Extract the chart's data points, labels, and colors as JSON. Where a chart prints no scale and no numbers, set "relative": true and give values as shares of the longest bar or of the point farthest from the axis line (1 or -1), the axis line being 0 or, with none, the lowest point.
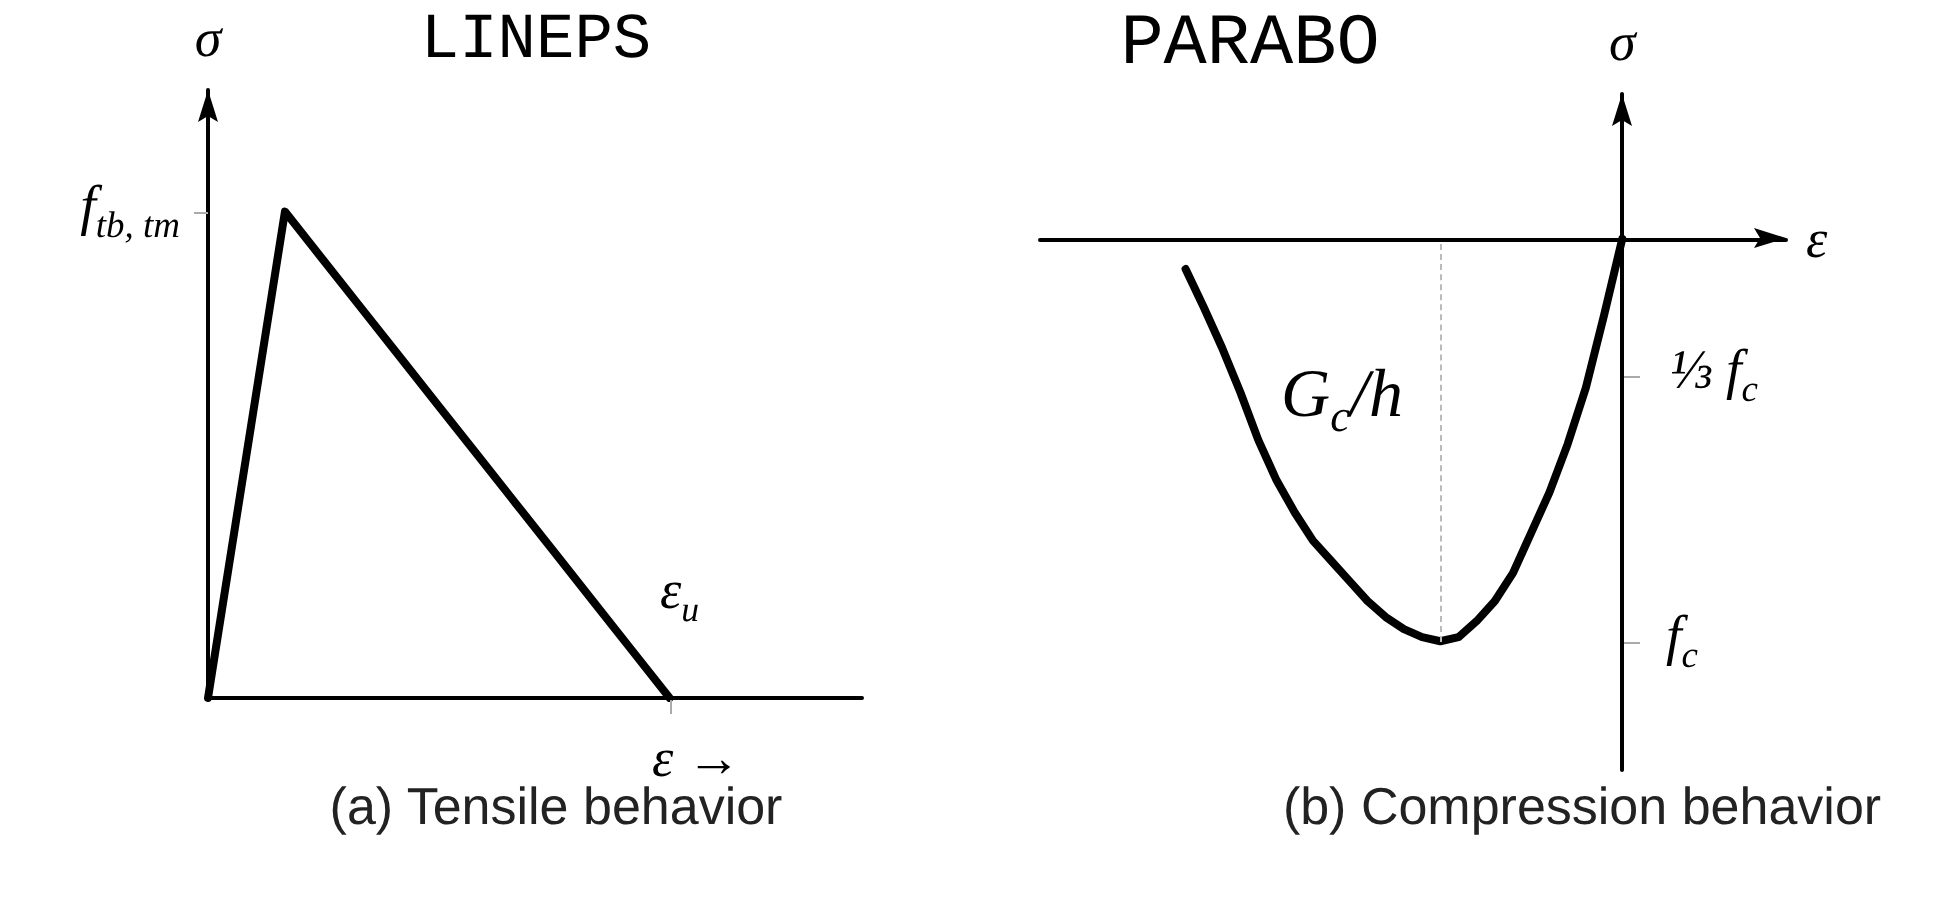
{
  "chart_data": [
    {
      "type": "line",
      "relative": true,
      "title": "(a) Tensile behavior",
      "subtitle": "LINEPS",
      "xlabel": "ε →",
      "ylabel": "σ",
      "categories": [
        null,
        null,
        null,
        null,
        null,
        null,
        null,
        null,
        null,
        null,
        null,
        null,
        null,
        null,
        null,
        null,
        null,
        null
      ],
      "values": [
        0,
        0.5,
        1,
        0.9,
        0.8,
        0.7,
        0.6,
        0.5,
        0.4,
        0.3,
        0.2,
        0.1,
        0,
        null,
        null,
        null,
        null,
        null
      ],
      "color": "#000000",
      "annotations": [
        "f$_{tb, tm}$",
        "ε$_{u}$"
      ],
      "marker": "none",
      "line_style": "solid"
    },
    {
      "type": "line",
      "relative": true,
      "title": "(b) Compression behavior",
      "subtitle": "PARABO",
      "xlabel": "ε",
      "ylabel": "σ",
      "categories": [
        null,
        null,
        null,
        null,
        null,
        null,
        null,
        null,
        null,
        null,
        null,
        null,
        null,
        null,
        null,
        null,
        null,
        null,
        null,
        null,
        null,
        null,
        null,
        null,
        null,
        null,
        null,
        null,
        null,
        null,
        null,
        null,
        null,
        null,
        null,
        null,
        null,
        null,
        null,
        null,
        null,
        null
      ],
      "values": [
        null,
        null,
        null,
        null,
        null,
        null,
        null,
        null,
        -0.075,
        -0.17,
        -0.27,
        -0.38,
        -0.5,
        -0.6,
        -0.68,
        -0.75,
        -0.8,
        -0.85,
        -0.9,
        -0.94,
        -0.97,
        -0.99,
        -1,
        -0.99,
        -0.95,
        -0.9,
        -0.83,
        -0.73,
        -0.63,
        -0.51,
        -0.37,
        -0.19,
        0,
        null,
        null,
        null,
        null,
        null,
        null,
        null,
        null,
        null
      ],
      "color": "#000000",
      "annotations": [
        "G$_{c}$/h",
        "⅓ f$_{c}$",
        "f$_{c}$"
      ],
      "marker": "none",
      "line_style": "solid"
    }
  ]
}
